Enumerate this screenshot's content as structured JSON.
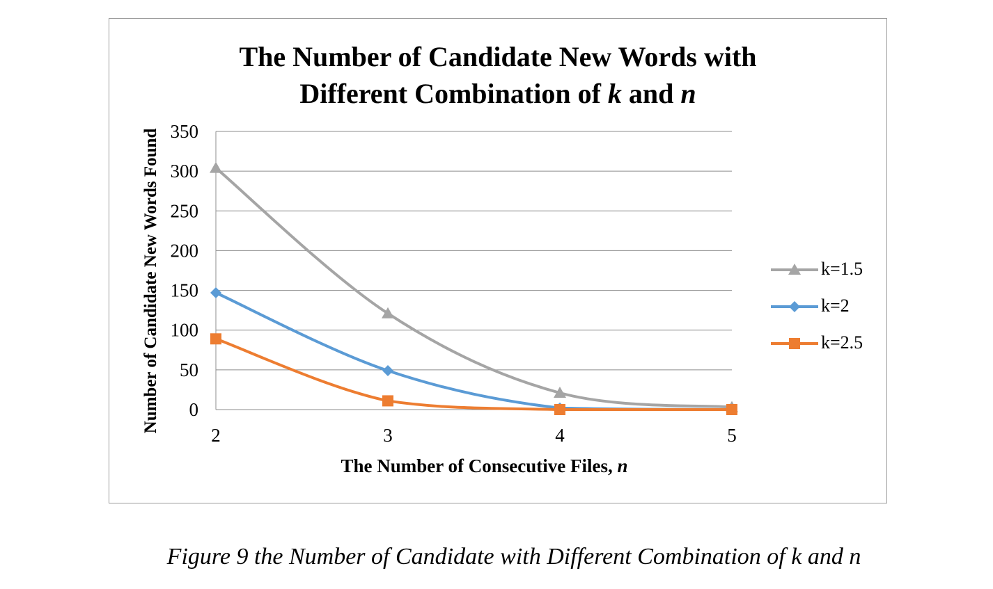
{
  "chart_data": {
    "type": "line",
    "title_line1": "The Number of Candidate New Words with",
    "title_line2_prefix": "Different Combination of ",
    "title_var1": "k",
    "title_and": " and ",
    "title_var2": "n",
    "xlabel_prefix": "The Number of Consecutive Files, ",
    "xlabel_var": "n",
    "ylabel": "Number of Candidate New Words Found",
    "x": [
      2,
      3,
      4,
      5
    ],
    "x_tick_labels": [
      "2",
      "3",
      "4",
      "5"
    ],
    "ylim": [
      0,
      350
    ],
    "y_ticks": [
      0,
      50,
      100,
      150,
      200,
      250,
      300,
      350
    ],
    "grid": true,
    "legend_position": "right",
    "series": [
      {
        "name": "k=1.5",
        "values": [
          304,
          121,
          21,
          3
        ],
        "color": "#a5a5a5",
        "marker": "triangle"
      },
      {
        "name": "k=2",
        "values": [
          147,
          49,
          2,
          0
        ],
        "color": "#5b9bd5",
        "marker": "diamond"
      },
      {
        "name": "k=2.5",
        "values": [
          89,
          11,
          0,
          0
        ],
        "color": "#ed7d31",
        "marker": "square"
      }
    ]
  },
  "caption": "Figure 9 the Number of Candidate with Different Combination of k and n"
}
